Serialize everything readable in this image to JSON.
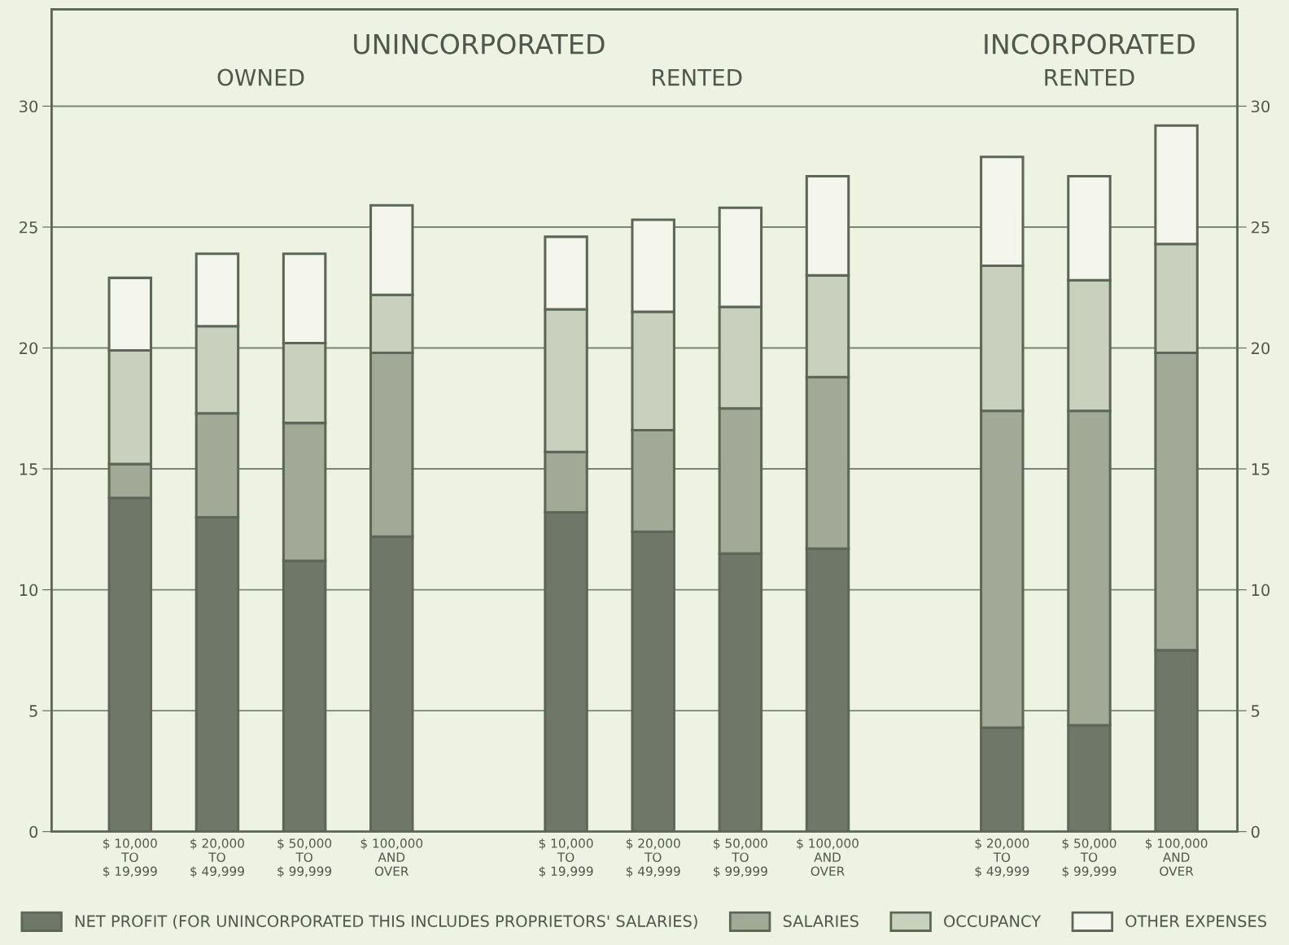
{
  "chart_data": {
    "type": "bar",
    "stacked": true,
    "categories": [
      "$ 10,000\nTO\n$ 19,999",
      "$ 20,000\nTO\n$ 49,999",
      "$ 50,000\nTO\n$ 99,999",
      "$ 100,000\nAND\nOVER",
      null,
      "$ 10,000\nTO\n$ 19,999",
      "$ 20,000\nTO\n$ 49,999",
      "$ 50,000\nTO\n$ 99,999",
      "$ 100,000\nAND\nOVER",
      null,
      "$ 20,000\nTO\n$ 49,999",
      "$ 50,000\nTO\n$ 99,999",
      "$ 100,000\nAND\nOVER"
    ],
    "series": [
      {
        "name": "NET PROFIT (FOR UNINCORPORATED THIS INCLUDES PROPRIETORS' SALARIES)",
        "color": "#6f7868",
        "values": [
          13.8,
          13.0,
          11.2,
          12.2,
          null,
          13.2,
          12.4,
          11.5,
          11.7,
          null,
          4.3,
          4.4,
          7.5
        ]
      },
      {
        "name": "SALARIES",
        "color": "#a2aa97",
        "values": [
          1.4,
          4.3,
          5.7,
          7.6,
          null,
          2.5,
          4.2,
          6.0,
          7.1,
          null,
          13.1,
          13.0,
          12.3
        ]
      },
      {
        "name": "OCCUPANCY",
        "color": "#c9d0bd",
        "values": [
          4.7,
          3.6,
          3.3,
          2.4,
          null,
          5.9,
          4.9,
          4.2,
          4.2,
          null,
          6.0,
          5.4,
          4.5
        ]
      },
      {
        "name": "OTHER EXPENSES",
        "color": "#f4f6ec",
        "values": [
          3.0,
          3.0,
          3.7,
          3.7,
          null,
          3.0,
          3.8,
          4.1,
          4.1,
          null,
          4.5,
          4.3,
          4.9
        ]
      }
    ],
    "ylim": [
      0,
      34
    ],
    "yticks": [
      0,
      5,
      10,
      15,
      20,
      25,
      30
    ],
    "y2lim": [
      0,
      34
    ],
    "y2ticks": [
      0,
      5,
      10,
      15,
      20,
      25,
      30
    ],
    "grid": "y",
    "legend": "bottom",
    "annotations": [
      "UNINCORPORATED",
      "OWNED",
      "RENTED",
      "INCORPORATED",
      "RENTED"
    ]
  }
}
